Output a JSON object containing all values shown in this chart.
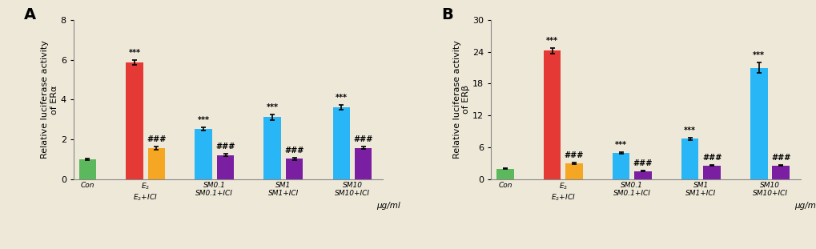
{
  "panel_A": {
    "title": "A",
    "ylabel": "Relative luciferase activity\nof ERα",
    "ylim": [
      0,
      8
    ],
    "yticks": [
      0,
      2,
      4,
      6,
      8
    ],
    "values": [
      1.0,
      5.88,
      1.58,
      2.52,
      1.21,
      3.12,
      1.03,
      3.6,
      1.58
    ],
    "errors": [
      0.05,
      0.12,
      0.08,
      0.07,
      0.06,
      0.15,
      0.05,
      0.12,
      0.07
    ],
    "colors": [
      "#5cb85c",
      "#e53935",
      "#f5a623",
      "#29b6f6",
      "#7b1fa2",
      "#29b6f6",
      "#7b1fa2",
      "#29b6f6",
      "#7b1fa2"
    ],
    "stars": [
      "",
      "***",
      "###",
      "***",
      "###",
      "***",
      "###",
      "***",
      "###"
    ],
    "xlabel": "μg/ml"
  },
  "panel_B": {
    "title": "B",
    "ylabel": "Relative luciferase activity\nof ERβ",
    "ylim": [
      0,
      30
    ],
    "yticks": [
      0,
      6,
      12,
      18,
      24,
      30
    ],
    "values": [
      2.0,
      24.2,
      3.0,
      5.0,
      1.5,
      7.6,
      2.6,
      21.0,
      2.6
    ],
    "errors": [
      0.08,
      0.5,
      0.15,
      0.15,
      0.08,
      0.25,
      0.12,
      1.0,
      0.12
    ],
    "colors": [
      "#5cb85c",
      "#e53935",
      "#f5a623",
      "#29b6f6",
      "#7b1fa2",
      "#29b6f6",
      "#7b1fa2",
      "#29b6f6",
      "#7b1fa2"
    ],
    "stars": [
      "",
      "***",
      "###",
      "***",
      "###",
      "***",
      "###",
      "***",
      "###"
    ],
    "xlabel": "μg/ml"
  },
  "bar_width": 0.55,
  "positions": [
    0,
    1.5,
    2.2,
    3.7,
    4.4,
    5.9,
    6.6,
    8.1,
    8.8
  ],
  "xtick_positions": [
    0,
    1.85,
    4.05,
    6.25,
    8.45
  ],
  "bg_color": "#ede8d8"
}
